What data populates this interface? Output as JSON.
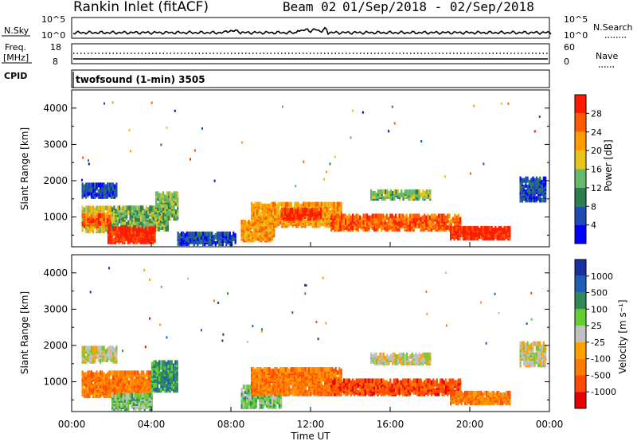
{
  "header": {
    "station": "Rankin Inlet (fitACF)",
    "beam": "Beam 02",
    "date_range": "01/Sep/2018 - 02/Sep/2018"
  },
  "panels": {
    "nsky": {
      "left_label": "N.Sky",
      "left_ticks": [
        "10^5",
        "10^0"
      ],
      "right_label": "N.Search",
      "right_ticks": [
        "10^5",
        "10^0"
      ]
    },
    "freq": {
      "left_label": "Freq.",
      "left_unit": "[MHz]",
      "left_ticks": [
        "18",
        "8"
      ],
      "right_label": "Nave",
      "right_ticks": [
        "60",
        "0"
      ]
    },
    "cpid": {
      "left_label": "CPID",
      "value": "twofsound (1-min) 3505"
    }
  },
  "colors": {
    "power": [
      "#0000ff",
      "#1c4cb4",
      "#2e7d4f",
      "#66b86a",
      "#e8c41a",
      "#ff9a00",
      "#ff5a00",
      "#ff1a00"
    ],
    "velocity": [
      "#e80000",
      "#ff4a00",
      "#ff7a00",
      "#ffa000",
      "#c0c0c0",
      "#66cc33",
      "#2e8b57",
      "#1c5fb4",
      "#1a2fa0"
    ]
  },
  "chart_data": [
    {
      "type": "heatmap",
      "id": "power",
      "ylabel": "Slant Range [km]",
      "y_ticks": [
        1000,
        2000,
        3000,
        4000
      ],
      "ylim": [
        180,
        4500
      ],
      "xlim": [
        0,
        24
      ],
      "colorbar": {
        "label": "Power [dB]",
        "ticks": [
          4,
          8,
          12,
          16,
          20,
          24,
          28
        ],
        "range": [
          0,
          32
        ]
      },
      "bands": [
        {
          "t0": 0.5,
          "t1": 2.3,
          "r0": 1500,
          "r1": 1850,
          "level": 1
        },
        {
          "t0": 0.5,
          "t1": 2.0,
          "r0": 550,
          "r1": 1200,
          "level": 4
        },
        {
          "t0": 0.5,
          "t1": 2.0,
          "r0": 700,
          "r1": 1000,
          "level": 6
        },
        {
          "t0": 2.0,
          "t1": 4.8,
          "r0": 600,
          "r1": 1200,
          "level": 3
        },
        {
          "t0": 1.8,
          "t1": 4.2,
          "r0": 250,
          "r1": 650,
          "level": 7
        },
        {
          "t0": 4.2,
          "t1": 5.3,
          "r0": 900,
          "r1": 1600,
          "level": 3
        },
        {
          "t0": 5.3,
          "t1": 8.2,
          "r0": 200,
          "r1": 500,
          "level": 1
        },
        {
          "t0": 8.5,
          "t1": 10.2,
          "r0": 300,
          "r1": 800,
          "level": 5
        },
        {
          "t0": 9.0,
          "t1": 13.5,
          "r0": 700,
          "r1": 1300,
          "level": 5
        },
        {
          "t0": 10.5,
          "t1": 12.5,
          "r0": 900,
          "r1": 1150,
          "level": 7
        },
        {
          "t0": 13.0,
          "t1": 19.5,
          "r0": 600,
          "r1": 1000,
          "level": 6
        },
        {
          "t0": 15.0,
          "t1": 18.0,
          "r0": 1450,
          "r1": 1650,
          "level": 3
        },
        {
          "t0": 19.0,
          "t1": 22.0,
          "r0": 350,
          "r1": 650,
          "level": 7
        },
        {
          "t0": 22.5,
          "t1": 23.8,
          "r0": 1400,
          "r1": 2000,
          "level": 1
        }
      ]
    },
    {
      "type": "heatmap",
      "id": "velocity",
      "ylabel": "Slant Range [km]",
      "xlabel": "Time UT",
      "y_ticks": [
        1000,
        2000,
        3000,
        4000
      ],
      "ylim": [
        180,
        4500
      ],
      "xlim": [
        0,
        24
      ],
      "x_ticks": [
        "00:00",
        "04:00",
        "08:00",
        "12:00",
        "16:00",
        "20:00",
        "00:00"
      ],
      "colorbar": {
        "label": "Velocity [m s⁻¹]",
        "ticks": [
          1000,
          500,
          100,
          25,
          -25,
          -100,
          -500,
          -1000
        ],
        "range": [
          -1200,
          1200
        ]
      },
      "bands": [
        {
          "t0": 0.5,
          "t1": 2.3,
          "r0": 1500,
          "r1": 1900,
          "level": 4
        },
        {
          "t0": 0.5,
          "t1": 4.0,
          "r0": 550,
          "r1": 1200,
          "level": 2
        },
        {
          "t0": 2.0,
          "t1": 4.0,
          "r0": 200,
          "r1": 600,
          "level": 5
        },
        {
          "t0": 4.0,
          "t1": 5.3,
          "r0": 700,
          "r1": 1500,
          "level": 6
        },
        {
          "t0": 8.5,
          "t1": 10.5,
          "r0": 250,
          "r1": 800,
          "level": 5
        },
        {
          "t0": 9.0,
          "t1": 13.5,
          "r0": 600,
          "r1": 1300,
          "level": 2
        },
        {
          "t0": 13.0,
          "t1": 19.5,
          "r0": 600,
          "r1": 1000,
          "level": 1
        },
        {
          "t0": 15.0,
          "t1": 18.0,
          "r0": 1450,
          "r1": 1700,
          "level": 4
        },
        {
          "t0": 19.0,
          "t1": 22.0,
          "r0": 350,
          "r1": 650,
          "level": 2
        },
        {
          "t0": 22.5,
          "t1": 23.8,
          "r0": 1400,
          "r1": 2000,
          "level": 4
        }
      ]
    }
  ]
}
